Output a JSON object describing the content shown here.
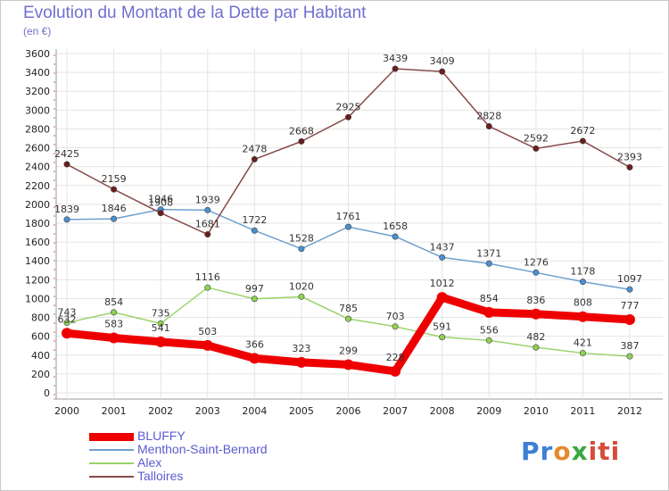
{
  "chart_data": {
    "type": "line",
    "title": "Evolution du Montant de la Dette par Habitant",
    "subtitle": "(en €)",
    "x": [
      "2000",
      "2001",
      "2002",
      "2003",
      "2004",
      "2005",
      "2006",
      "2007",
      "2008",
      "2009",
      "2010",
      "2011",
      "2012"
    ],
    "ylim": [
      0,
      3600
    ],
    "yticks": [
      0,
      200,
      400,
      600,
      800,
      1000,
      1200,
      1400,
      1600,
      1800,
      2000,
      2200,
      2400,
      2600,
      2800,
      3000,
      3200,
      3400,
      3600
    ],
    "grid": true,
    "legend_position": "bottom-left",
    "series": [
      {
        "name": "BLUFFY",
        "color": "#ee0000",
        "width": 9,
        "values": [
          632,
          583,
          541,
          503,
          366,
          323,
          299,
          228,
          1012,
          854,
          836,
          808,
          777
        ]
      },
      {
        "name": "Menthon-Saint-Bernard",
        "color": "#6fa0cf",
        "width": 1.5,
        "marker": "#4a90d0",
        "values": [
          1839,
          1846,
          1946,
          1939,
          1722,
          1528,
          1761,
          1658,
          1437,
          1371,
          1276,
          1178,
          1097
        ]
      },
      {
        "name": "Alex",
        "color": "#9bd36b",
        "width": 1.5,
        "marker": "#8fd152",
        "values": [
          743,
          854,
          735,
          1116,
          997,
          1020,
          785,
          703,
          591,
          556,
          482,
          421,
          387
        ]
      },
      {
        "name": "Talloires",
        "color": "#8a4a4a",
        "width": 1.5,
        "marker": "#6b1d1d",
        "values": [
          2425,
          2159,
          1908,
          1681,
          2478,
          2668,
          2925,
          3439,
          3409,
          2828,
          2592,
          2672,
          2393
        ]
      }
    ]
  },
  "logo": {
    "parts": [
      "Pr",
      "o",
      "x",
      "iti"
    ]
  }
}
